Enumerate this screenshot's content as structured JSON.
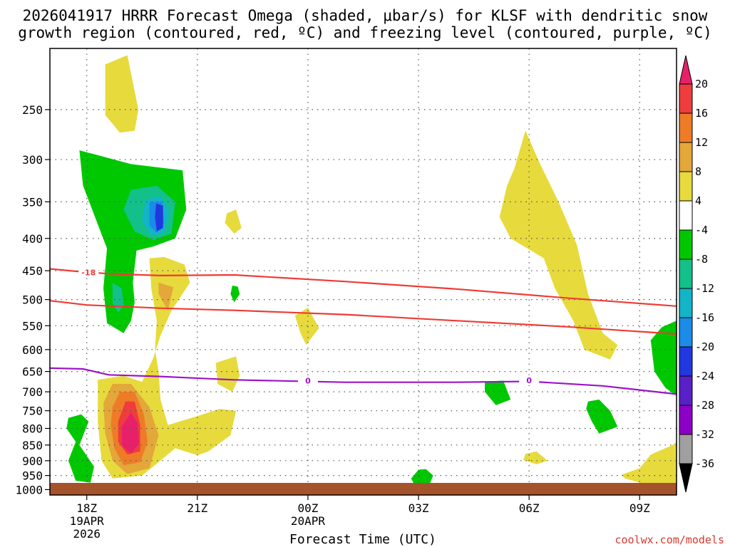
{
  "chart_data": {
    "type": "time-height cross section",
    "title_line1": "2026041917 HRRR Forecast Omega (shaded, μbar/s) for KLSF with dendritic snow",
    "title_line2": "growth region (contoured, red, ºC) and freezing level (contoured, purple, ºC)",
    "xlabel": "Forecast Time (UTC)",
    "x_range_hours": [
      -1,
      16
    ],
    "y_range_hpa": [
      200,
      1020
    ],
    "y_ticks": [
      "250",
      "300",
      "350",
      "400",
      "450",
      "500",
      "550",
      "600",
      "650",
      "700",
      "750",
      "800",
      "850",
      "900",
      "950",
      "1000"
    ],
    "x_ticks": [
      {
        "hour": 0,
        "label": "18Z",
        "sub1": "19APR",
        "sub2": "2026"
      },
      {
        "hour": 3,
        "label": "21Z",
        "sub1": "",
        "sub2": ""
      },
      {
        "hour": 6,
        "label": "00Z",
        "sub1": "20APR",
        "sub2": ""
      },
      {
        "hour": 9,
        "label": "03Z",
        "sub1": "",
        "sub2": ""
      },
      {
        "hour": 12,
        "label": "06Z",
        "sub1": "",
        "sub2": ""
      },
      {
        "hour": 15,
        "label": "09Z",
        "sub1": "",
        "sub2": ""
      }
    ],
    "colorbar": {
      "labels": [
        "20",
        "16",
        "12",
        "8",
        "4",
        "-4",
        "-8",
        "-12",
        "-16",
        "-20",
        "-24",
        "-28",
        "-32",
        "-36"
      ],
      "colors": [
        "#e8206a",
        "#ef3c3c",
        "#ee7c26",
        "#e3a73a",
        "#e7da3c",
        "#ffffff",
        "#00c800",
        "#14c08a",
        "#12b4c8",
        "#1a8ce8",
        "#2038e0",
        "#5a20c8",
        "#8c00c8",
        "#a0a0a0",
        "#000000"
      ]
    },
    "dgz_top": {
      "label": "-18",
      "points": [
        [
          -1,
          447
        ],
        [
          -0.3,
          451
        ],
        [
          0.6,
          455
        ],
        [
          2,
          458
        ],
        [
          4,
          457
        ],
        [
          7,
          468
        ],
        [
          10,
          481
        ],
        [
          13,
          497
        ],
        [
          16,
          512
        ]
      ]
    },
    "dgz_bottom": {
      "label": "",
      "points": [
        [
          -1,
          502
        ],
        [
          0,
          510
        ],
        [
          2,
          516
        ],
        [
          4,
          520
        ],
        [
          7,
          528
        ],
        [
          10,
          540
        ],
        [
          13,
          552
        ],
        [
          16,
          567
        ]
      ]
    },
    "freezing_level": {
      "label": "0",
      "points": [
        [
          -1,
          642
        ],
        [
          -0.1,
          644
        ],
        [
          0.6,
          658
        ],
        [
          2,
          662
        ],
        [
          4,
          670
        ],
        [
          7,
          676
        ],
        [
          10,
          676
        ],
        [
          12,
          674
        ],
        [
          14,
          685
        ],
        [
          16,
          706
        ]
      ]
    },
    "omega_areas": [
      {
        "value": 4,
        "points": [
          [
            0.5,
            212
          ],
          [
            1.1,
            205
          ],
          [
            1.4,
            250
          ],
          [
            1.3,
            270
          ],
          [
            0.9,
            272
          ],
          [
            0.5,
            255
          ]
        ]
      },
      {
        "value": -4,
        "points": [
          [
            -0.2,
            290
          ],
          [
            1.2,
            305
          ],
          [
            2.6,
            312
          ],
          [
            2.7,
            360
          ],
          [
            2.4,
            400
          ],
          [
            1.8,
            412
          ],
          [
            1.35,
            418
          ],
          [
            1.25,
            470
          ],
          [
            1.3,
            505
          ],
          [
            1.2,
            540
          ],
          [
            1.0,
            565
          ],
          [
            0.55,
            545
          ],
          [
            0.45,
            480
          ],
          [
            0.55,
            415
          ],
          [
            0.3,
            380
          ],
          [
            -0.1,
            330
          ]
        ]
      },
      {
        "value": -8,
        "points": [
          [
            1.2,
            335
          ],
          [
            1.9,
            330
          ],
          [
            2.4,
            350
          ],
          [
            2.3,
            393
          ],
          [
            1.8,
            402
          ],
          [
            1.3,
            390
          ],
          [
            1.0,
            360
          ]
        ]
      },
      {
        "value": -12,
        "points": [
          [
            1.6,
            347
          ],
          [
            2.0,
            343
          ],
          [
            2.25,
            362
          ],
          [
            2.1,
            392
          ],
          [
            1.75,
            395
          ],
          [
            1.5,
            375
          ]
        ]
      },
      {
        "value": -16,
        "points": [
          [
            1.7,
            350
          ],
          [
            2.05,
            350
          ],
          [
            2.1,
            378
          ],
          [
            1.9,
            392
          ],
          [
            1.7,
            382
          ]
        ]
      },
      {
        "value": -20,
        "points": [
          [
            1.88,
            352
          ],
          [
            2.07,
            355
          ],
          [
            2.07,
            385
          ],
          [
            1.9,
            390
          ],
          [
            1.85,
            370
          ]
        ]
      },
      {
        "value": -8,
        "points": [
          [
            0.7,
            470
          ],
          [
            0.95,
            480
          ],
          [
            1.0,
            510
          ],
          [
            0.85,
            525
          ],
          [
            0.7,
            505
          ]
        ]
      },
      {
        "value": 4,
        "points": [
          [
            1.7,
            430
          ],
          [
            2.1,
            428
          ],
          [
            2.65,
            440
          ],
          [
            2.8,
            470
          ],
          [
            2.3,
            520
          ],
          [
            2.0,
            570
          ],
          [
            1.8,
            620
          ],
          [
            1.5,
            675
          ],
          [
            1.0,
            660
          ],
          [
            0.3,
            670
          ],
          [
            0.3,
            780
          ],
          [
            0.4,
            900
          ],
          [
            0.7,
            960
          ],
          [
            1.5,
            950
          ],
          [
            2.0,
            900
          ],
          [
            2.4,
            860
          ],
          [
            3.0,
            882
          ],
          [
            3.3,
            870
          ],
          [
            3.9,
            820
          ],
          [
            4.05,
            750
          ],
          [
            3.6,
            745
          ],
          [
            3.0,
            765
          ],
          [
            2.2,
            790
          ],
          [
            2.0,
            720
          ],
          [
            1.95,
            650
          ],
          [
            1.85,
            600
          ],
          [
            1.9,
            540
          ],
          [
            1.75,
            480
          ]
        ]
      },
      {
        "value": 8,
        "points": [
          [
            1.95,
            470
          ],
          [
            2.35,
            478
          ],
          [
            2.2,
            520
          ],
          [
            1.95,
            490
          ]
        ]
      },
      {
        "value": 8,
        "points": [
          [
            0.7,
            680
          ],
          [
            1.2,
            680
          ],
          [
            1.7,
            740
          ],
          [
            1.95,
            820
          ],
          [
            1.7,
            925
          ],
          [
            1.1,
            945
          ],
          [
            0.7,
            900
          ],
          [
            0.5,
            815
          ],
          [
            0.45,
            730
          ]
        ]
      },
      {
        "value": 12,
        "points": [
          [
            0.9,
            700
          ],
          [
            1.3,
            700
          ],
          [
            1.55,
            760
          ],
          [
            1.65,
            840
          ],
          [
            1.45,
            905
          ],
          [
            1.0,
            915
          ],
          [
            0.75,
            860
          ],
          [
            0.65,
            790
          ],
          [
            0.7,
            740
          ]
        ]
      },
      {
        "value": 16,
        "points": [
          [
            1.05,
            725
          ],
          [
            1.3,
            725
          ],
          [
            1.45,
            790
          ],
          [
            1.45,
            870
          ],
          [
            1.1,
            880
          ],
          [
            0.85,
            840
          ],
          [
            0.85,
            780
          ]
        ]
      },
      {
        "value": 20,
        "points": [
          [
            1.2,
            755
          ],
          [
            1.38,
            785
          ],
          [
            1.42,
            845
          ],
          [
            1.2,
            878
          ],
          [
            0.95,
            850
          ],
          [
            0.95,
            795
          ]
        ]
      },
      {
        "value": -4,
        "points": [
          [
            -0.5,
            770
          ],
          [
            -0.15,
            760
          ],
          [
            0.05,
            780
          ],
          [
            -0.2,
            850
          ],
          [
            0.2,
            920
          ],
          [
            0.1,
            975
          ],
          [
            -0.3,
            968
          ],
          [
            -0.5,
            900
          ],
          [
            -0.3,
            840
          ],
          [
            -0.55,
            800
          ]
        ]
      },
      {
        "value": 4,
        "points": [
          [
            3.8,
            365
          ],
          [
            4.05,
            360
          ],
          [
            4.2,
            385
          ],
          [
            4.0,
            393
          ],
          [
            3.75,
            378
          ]
        ]
      },
      {
        "value": -4,
        "points": [
          [
            3.95,
            475
          ],
          [
            4.1,
            477
          ],
          [
            4.15,
            490
          ],
          [
            4.0,
            505
          ],
          [
            3.9,
            490
          ]
        ]
      },
      {
        "value": 4,
        "points": [
          [
            3.5,
            630
          ],
          [
            4.05,
            615
          ],
          [
            4.15,
            660
          ],
          [
            3.95,
            700
          ],
          [
            3.55,
            680
          ]
        ]
      },
      {
        "value": 4,
        "points": [
          [
            5.65,
            530
          ],
          [
            6.0,
            515
          ],
          [
            6.3,
            555
          ],
          [
            5.95,
            590
          ],
          [
            5.8,
            565
          ]
        ]
      },
      {
        "value": 4,
        "points": [
          [
            11.6,
            310
          ],
          [
            11.9,
            270
          ],
          [
            12.3,
            305
          ],
          [
            12.8,
            350
          ],
          [
            13.3,
            410
          ],
          [
            13.6,
            490
          ],
          [
            14.0,
            565
          ],
          [
            14.4,
            590
          ],
          [
            14.2,
            622
          ],
          [
            13.5,
            600
          ],
          [
            13.2,
            540
          ],
          [
            12.7,
            480
          ],
          [
            12.4,
            430
          ],
          [
            11.5,
            400
          ],
          [
            11.2,
            370
          ],
          [
            11.4,
            330
          ]
        ]
      },
      {
        "value": -4,
        "points": [
          [
            10.8,
            675
          ],
          [
            11.3,
            672
          ],
          [
            11.5,
            720
          ],
          [
            11.1,
            735
          ],
          [
            10.8,
            700
          ]
        ]
      },
      {
        "value": -4,
        "points": [
          [
            13.6,
            725
          ],
          [
            13.9,
            720
          ],
          [
            14.2,
            750
          ],
          [
            14.4,
            795
          ],
          [
            13.9,
            815
          ],
          [
            13.7,
            780
          ],
          [
            13.55,
            745
          ]
        ]
      },
      {
        "value": -4,
        "points": [
          [
            9.0,
            930
          ],
          [
            9.2,
            928
          ],
          [
            9.4,
            950
          ],
          [
            9.3,
            980
          ],
          [
            8.9,
            985
          ],
          [
            8.8,
            960
          ]
        ]
      },
      {
        "value": 4,
        "points": [
          [
            11.9,
            878
          ],
          [
            12.2,
            870
          ],
          [
            12.5,
            900
          ],
          [
            12.2,
            912
          ],
          [
            11.85,
            898
          ]
        ]
      },
      {
        "value": 4,
        "points": [
          [
            15.3,
            880
          ],
          [
            15.9,
            850
          ],
          [
            16.0,
            840
          ],
          [
            16.0,
            985
          ],
          [
            15.5,
            990
          ],
          [
            15.0,
            975
          ],
          [
            14.6,
            960
          ],
          [
            14.5,
            948
          ],
          [
            15.0,
            925
          ]
        ]
      },
      {
        "value": -4,
        "points": [
          [
            16.0,
            540
          ],
          [
            16.0,
            710
          ],
          [
            15.7,
            690
          ],
          [
            15.4,
            650
          ],
          [
            15.3,
            580
          ],
          [
            15.6,
            553
          ]
        ]
      }
    ]
  },
  "credit": "coolwx.com/models"
}
